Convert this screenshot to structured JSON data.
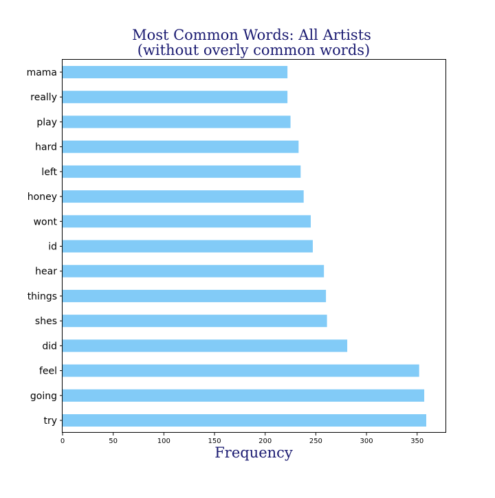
{
  "chart_data": {
    "type": "bar",
    "orientation": "horizontal",
    "title": "Most Common Words: All Artists",
    "subtitle": "(without overly common words)",
    "xlabel": "Frequency",
    "ylabel": "",
    "categories": [
      "mama",
      "really",
      "play",
      "hard",
      "left",
      "honey",
      "wont",
      "id",
      "hear",
      "things",
      "shes",
      "did",
      "feel",
      "going",
      "try"
    ],
    "values": [
      222,
      222,
      225,
      233,
      235,
      238,
      245,
      247,
      258,
      260,
      261,
      281,
      352,
      357,
      359
    ],
    "xlim": [
      0,
      378
    ],
    "xticks": [
      "0",
      "50",
      "100",
      "150",
      "200",
      "250",
      "300",
      "350"
    ],
    "grid": false,
    "legend": "none"
  },
  "colors": {
    "bar": "#82cbf7",
    "title": "#191970",
    "xlabel": "#191970",
    "axis": "#000000"
  }
}
